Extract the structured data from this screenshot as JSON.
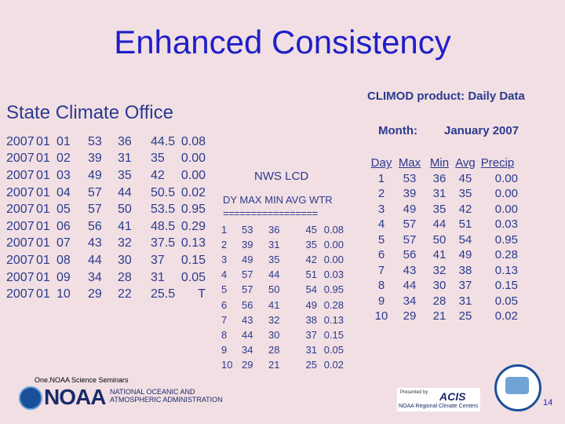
{
  "title": "Enhanced Consistency",
  "state_climate_office": {
    "title": "State Climate Office",
    "rows": [
      [
        "2007",
        "01",
        "01",
        "53",
        "36",
        "44.5",
        "0.08"
      ],
      [
        "2007",
        "01",
        "02",
        "39",
        "31",
        "35",
        "0.00"
      ],
      [
        "2007",
        "01",
        "03",
        "49",
        "35",
        "42",
        "0.00"
      ],
      [
        "2007",
        "01",
        "04",
        "57",
        "44",
        "50.5",
        "0.02"
      ],
      [
        "2007",
        "01",
        "05",
        "57",
        "50",
        "53.5",
        "0.95"
      ],
      [
        "2007",
        "01",
        "06",
        "56",
        "41",
        "48.5",
        "0.29"
      ],
      [
        "2007",
        "01",
        "07",
        "43",
        "32",
        "37.5",
        "0.13"
      ],
      [
        "2007",
        "01",
        "08",
        "44",
        "30",
        "37",
        "0.15"
      ],
      [
        "2007",
        "01",
        "09",
        "34",
        "28",
        "31",
        "0.05"
      ],
      [
        "2007",
        "01",
        "10",
        "29",
        "22",
        "25.5",
        "T"
      ]
    ]
  },
  "nws_lcd": {
    "title": "NWS LCD",
    "header": "DY MAX MIN AVG WTR",
    "separator": "=================",
    "rows": [
      [
        "1",
        "53",
        "36",
        "45",
        "0.08"
      ],
      [
        "2",
        "39",
        "31",
        "35",
        "0.00"
      ],
      [
        "3",
        "49",
        "35",
        "42",
        "0.00"
      ],
      [
        "4",
        "57",
        "44",
        "51",
        "0.03"
      ],
      [
        "5",
        "57",
        "50",
        "54",
        "0.95"
      ],
      [
        "6",
        "56",
        "41",
        "49",
        "0.28"
      ],
      [
        "7",
        "43",
        "32",
        "38",
        "0.13"
      ],
      [
        "8",
        "44",
        "30",
        "37",
        "0.15"
      ],
      [
        "9",
        "34",
        "28",
        "31",
        "0.05"
      ],
      [
        "10",
        "29",
        "21",
        "25",
        "0.02"
      ]
    ]
  },
  "climod": {
    "title": "CLIMOD product: Daily Data",
    "month_label": "Month:",
    "month_value": "January 2007",
    "columns": [
      "Day",
      "Max",
      "Min",
      "Avg",
      "Precip"
    ],
    "rows": [
      [
        "1",
        "53",
        "36",
        "45",
        "0.00"
      ],
      [
        "2",
        "39",
        "31",
        "35",
        "0.00"
      ],
      [
        "3",
        "49",
        "35",
        "42",
        "0.00"
      ],
      [
        "4",
        "57",
        "44",
        "51",
        "0.03"
      ],
      [
        "5",
        "57",
        "50",
        "54",
        "0.95"
      ],
      [
        "6",
        "56",
        "41",
        "49",
        "0.28"
      ],
      [
        "7",
        "43",
        "32",
        "38",
        "0.13"
      ],
      [
        "8",
        "44",
        "30",
        "37",
        "0.15"
      ],
      [
        "9",
        "34",
        "28",
        "31",
        "0.05"
      ],
      [
        "10",
        "29",
        "21",
        "25",
        "0.02"
      ]
    ]
  },
  "footer": {
    "seminars": "One.NOAA Science Seminars",
    "noaa_word": "NOAA",
    "noaa_name_line1": "NATIONAL OCEANIC AND",
    "noaa_name_line2": "ATMOSPHERIC ADMINISTRATION",
    "acis_presented": "Presented by",
    "acis_word": "ACIS",
    "acis_centers": "NOAA Regional Climate Centers",
    "page_number": "14"
  },
  "icons": [
    "noaa-seal-icon",
    "rcc-logo-icon"
  ]
}
